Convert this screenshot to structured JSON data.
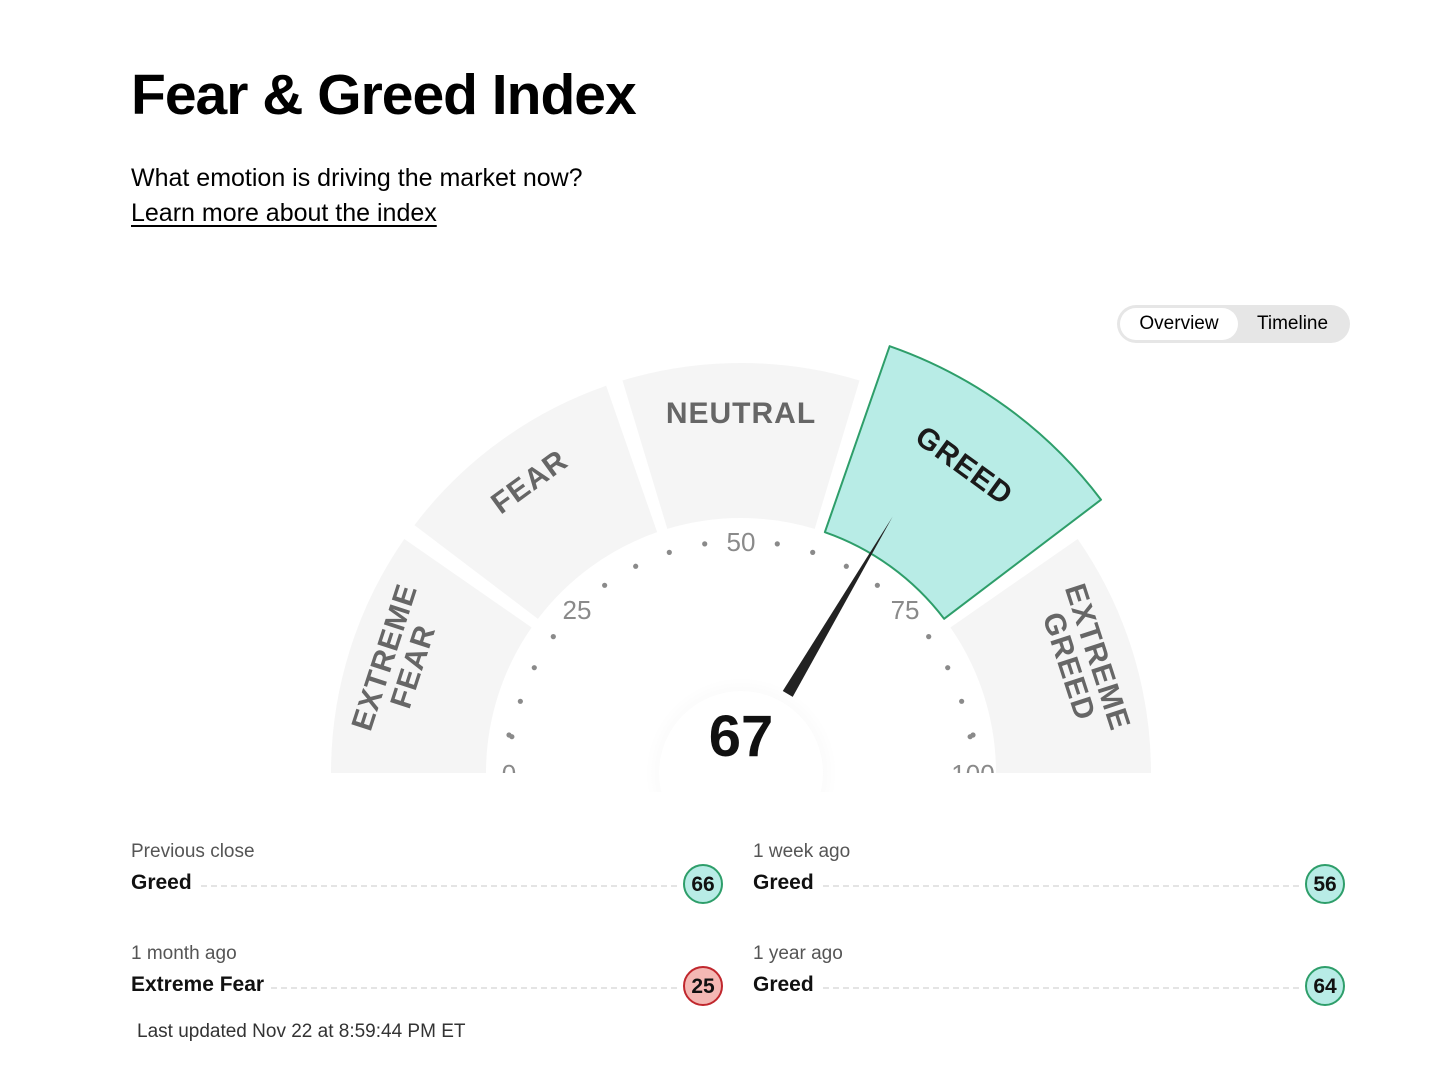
{
  "header": {
    "title": "Fear & Greed Index",
    "subtitle": "What emotion is driving the market now?",
    "learn_more_link": "Learn more about the index"
  },
  "view_toggle": {
    "options": [
      "Overview",
      "Timeline"
    ],
    "selected": "Overview"
  },
  "gauge": {
    "value": 67,
    "active_zone": "GREED",
    "zones": [
      {
        "lines": [
          "EXTREME",
          "FEAR"
        ]
      },
      {
        "lines": [
          "FEAR"
        ]
      },
      {
        "lines": [
          "NEUTRAL"
        ]
      },
      {
        "lines": [
          "GREED"
        ]
      },
      {
        "lines": [
          "EXTREME",
          "GREED"
        ]
      }
    ],
    "scale_labels": [
      "0",
      "25",
      "50",
      "75",
      "100"
    ]
  },
  "stats": [
    {
      "caption": "Previous close",
      "label": "Greed",
      "value": "66",
      "tone": "greed"
    },
    {
      "caption": "1 week ago",
      "label": "Greed",
      "value": "56",
      "tone": "greed"
    },
    {
      "caption": "1 month ago",
      "label": "Extreme Fear",
      "value": "25",
      "tone": "fear"
    },
    {
      "caption": "1 year ago",
      "label": "Greed",
      "value": "64",
      "tone": "greed"
    }
  ],
  "last_updated": "Last updated Nov 22 at 8:59:44 PM ET",
  "colors": {
    "greed_fill": "#b8ece6",
    "greed_stroke": "#2e9e6a",
    "fear_fill": "#f4b8b4",
    "fear_stroke": "#c0272d",
    "zone_fill": "#f5f5f5",
    "zone_text": "#666666",
    "active_text": "#1a1a1a"
  }
}
